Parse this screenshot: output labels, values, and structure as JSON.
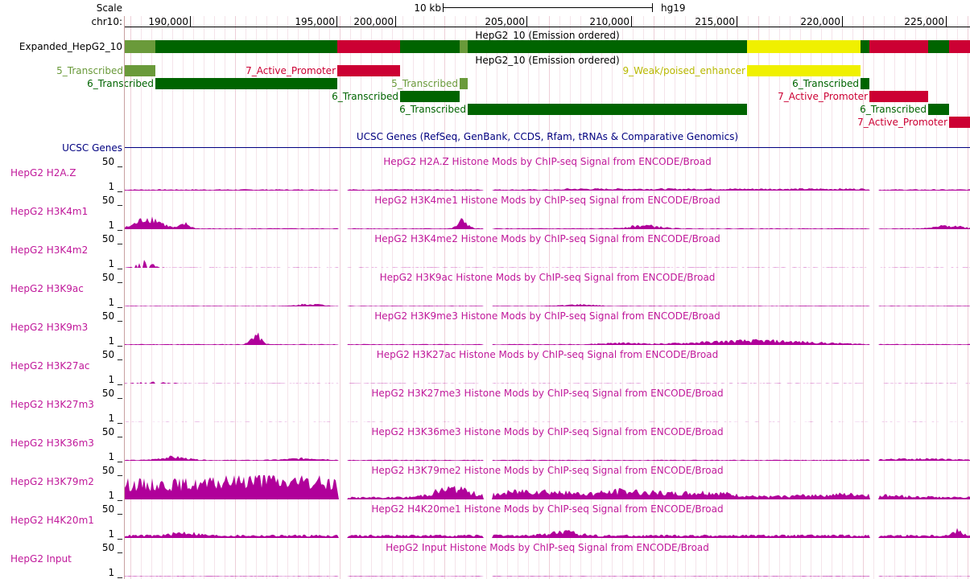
{
  "header": {
    "scale_label": "Scale",
    "chrom_label": "chr10:",
    "scale_bar_label": "10 kb",
    "assembly": "hg19",
    "ticks": [
      "190,000",
      "195,000",
      "200,000",
      "205,000",
      "210,000",
      "215,000",
      "220,000",
      "225,000"
    ]
  },
  "hmm_track": {
    "dense_label": "Expanded_HepG2_10",
    "dense_title": "HepG2_10 (Emission ordered)",
    "expanded_title": "HepG2_10 (Emission ordered)",
    "dense_segments": [
      {
        "state": "5_Transcribed",
        "color": "#6a9a3a"
      },
      {
        "state": "6_Transcribed",
        "color": "#006400"
      },
      {
        "state": "7_Active_Promoter",
        "color": "#cc0033"
      },
      {
        "state": "6_Transcribed",
        "color": "#006400"
      },
      {
        "state": "5_Transcribed",
        "color": "#6a9a3a"
      },
      {
        "state": "6_Transcribed",
        "color": "#006400"
      },
      {
        "state": "9_Weak/poised_enhancer",
        "color": "#f0f000"
      },
      {
        "state": "6_Transcribed",
        "color": "#006400"
      },
      {
        "state": "7_Active_Promoter",
        "color": "#cc0033"
      },
      {
        "state": "6_Transcribed",
        "color": "#006400"
      },
      {
        "state": "7_Active_Promoter",
        "color": "#cc0033"
      }
    ],
    "items": [
      {
        "name": "5_Transcribed",
        "color": "#6a9a3a",
        "label_color": "#6a9a3a"
      },
      {
        "name": "7_Active_Promoter",
        "color": "#cc0033",
        "label_color": "#cc0033"
      },
      {
        "name": "9_Weak/poised_enhancer",
        "color": "#f0f000",
        "label_color": "#b8b800"
      },
      {
        "name": "6_Transcribed",
        "color": "#006400",
        "label_color": "#006400"
      },
      {
        "name": "5_Transcribed",
        "color": "#6a9a3a",
        "label_color": "#6a9a3a"
      },
      {
        "name": "6_Transcribed",
        "color": "#006400",
        "label_color": "#006400"
      },
      {
        "name": "6_Transcribed",
        "color": "#006400",
        "label_color": "#006400"
      },
      {
        "name": "7_Active_Promoter",
        "color": "#cc0033",
        "label_color": "#cc0033"
      },
      {
        "name": "6_Transcribed",
        "color": "#006400",
        "label_color": "#006400"
      },
      {
        "name": "6_Transcribed",
        "color": "#006400",
        "label_color": "#006400"
      },
      {
        "name": "7_Active_Promoter",
        "color": "#cc0033",
        "label_color": "#cc0033"
      }
    ]
  },
  "genes_track": {
    "title": "UCSC Genes (RefSeq, GenBank, CCDS, Rfam, tRNAs & Comparative Genomics)",
    "label": "UCSC Genes",
    "color": "#000080"
  },
  "signal_color": "#b0009a",
  "label_color": "#c0189a",
  "signal_tracks": [
    {
      "label": "HepG2 H2A.Z",
      "title": "HepG2 H2A.Z Histone Mods by ChIP-seq Signal from ENCODE/Broad",
      "max": "50",
      "min": "1"
    },
    {
      "label": "HepG2 H3K4m1",
      "title": "HepG2 H3K4me1 Histone Mods by ChIP-seq Signal from ENCODE/Broad",
      "max": "50",
      "min": "1"
    },
    {
      "label": "HepG2 H3K4m2",
      "title": "HepG2 H3K4me2 Histone Mods by ChIP-seq Signal from ENCODE/Broad",
      "max": "50",
      "min": "1"
    },
    {
      "label": "HepG2 H3K9ac",
      "title": "HepG2 H3K9ac Histone Mods by ChIP-seq Signal from ENCODE/Broad",
      "max": "50",
      "min": "1"
    },
    {
      "label": "HepG2 H3K9m3",
      "title": "HepG2 H3K9me3 Histone Mods by ChIP-seq Signal from ENCODE/Broad",
      "max": "50",
      "min": "1"
    },
    {
      "label": "HepG2 H3K27ac",
      "title": "HepG2 H3K27ac Histone Mods by ChIP-seq Signal from ENCODE/Broad",
      "max": "50",
      "min": "1"
    },
    {
      "label": "HepG2 H3K27m3",
      "title": "HepG2 H3K27me3 Histone Mods by ChIP-seq Signal from ENCODE/Broad",
      "max": "50",
      "min": "1"
    },
    {
      "label": "HepG2 H3K36m3",
      "title": "HepG2 H3K36me3 Histone Mods by ChIP-seq Signal from ENCODE/Broad",
      "max": "50",
      "min": "1"
    },
    {
      "label": "HepG2 H3K79m2",
      "title": "HepG2 H3K79me2 Histone Mods by ChIP-seq Signal from ENCODE/Broad",
      "max": "50",
      "min": "1"
    },
    {
      "label": "HepG2 H4K20m1",
      "title": "HepG2 H4K20me1 Histone Mods by ChIP-seq Signal from ENCODE/Broad",
      "max": "50",
      "min": "1"
    },
    {
      "label": "HepG2 Input",
      "title": "HepG2 Input Histone Mods by ChIP-seq Signal from ENCODE/Broad",
      "max": "50",
      "min": "1"
    }
  ]
}
